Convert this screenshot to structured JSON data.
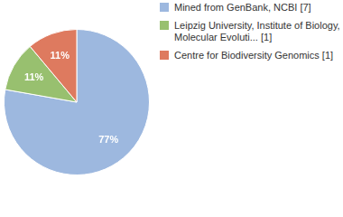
{
  "chart_data": {
    "type": "pie",
    "categories": [
      "Mined from GenBank, NCBI [7]",
      "Leipzig University, Institute of Biology, Molecular Evoluti... [1]",
      "Centre for Biodiversity Genomics [1]"
    ],
    "values": [
      77,
      11,
      11
    ],
    "value_labels": [
      "77%",
      "11%",
      "11%"
    ],
    "colors": [
      "#9db8df",
      "#98c06f",
      "#de7a5f"
    ],
    "data_labels": true,
    "legend": "right"
  }
}
